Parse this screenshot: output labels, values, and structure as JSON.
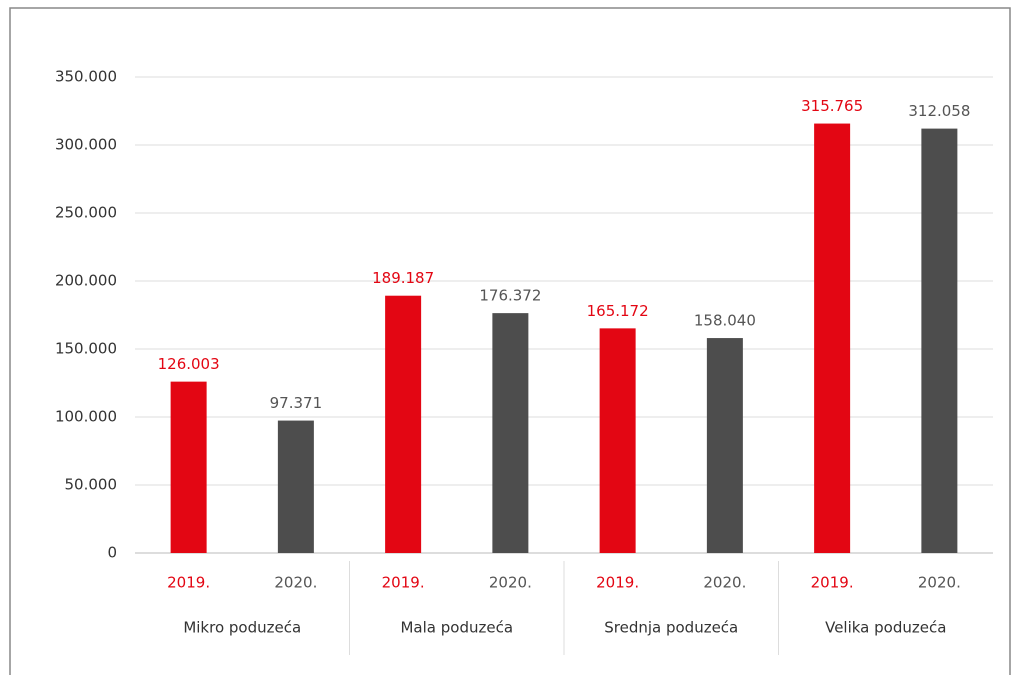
{
  "chart_data": {
    "type": "bar",
    "categories": [
      "Mikro poduzeća",
      "Mala poduzeća",
      "Srednja poduzeća",
      "Velika poduzeća"
    ],
    "series": [
      {
        "name": "2019.",
        "color": "#e30613",
        "values": [
          126003,
          189187,
          165172,
          315765
        ],
        "value_labels": [
          "126.003",
          "189.187",
          "165.172",
          "315.765"
        ]
      },
      {
        "name": "2020.",
        "color": "#4d4d4d",
        "values": [
          97371,
          176372,
          158040,
          312058
        ],
        "value_labels": [
          "97.371",
          "176.372",
          "158.040",
          "312.058"
        ]
      }
    ],
    "ylim": [
      0,
      350000
    ],
    "yticks": [
      0,
      {
        "value": 50000,
        "label": "50.000"
      },
      {
        "value": 100000,
        "label": "100.000"
      },
      {
        "value": 150000,
        "label": "150.000"
      },
      {
        "value": 200000,
        "label": "200.000"
      },
      {
        "value": 250000,
        "label": "250.000"
      },
      {
        "value": 300000,
        "label": "300.000"
      },
      {
        "value": 350000,
        "label": "350.000"
      }
    ],
    "grid": true
  }
}
